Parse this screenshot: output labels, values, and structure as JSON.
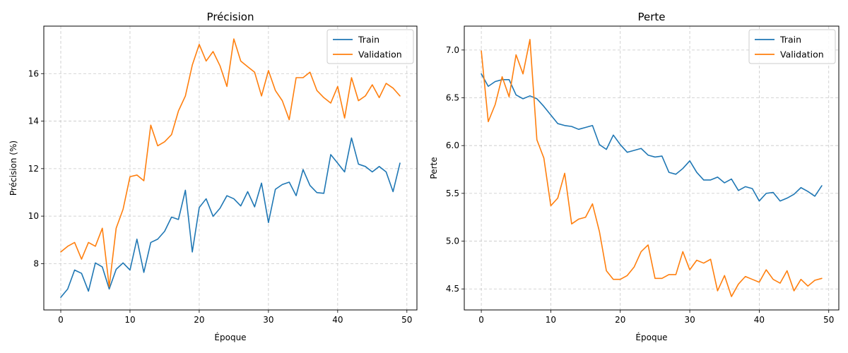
{
  "chart_data": [
    {
      "type": "line",
      "title": "Précision",
      "xlabel": "Époque",
      "ylabel": "Précision (%)",
      "xlim": [
        -2.45,
        51.45
      ],
      "ylim": [
        6.05,
        18.0
      ],
      "xticks": [
        0,
        10,
        20,
        30,
        40,
        50
      ],
      "yticks": [
        8,
        10,
        12,
        14,
        16
      ],
      "ytick_decimals": 0,
      "grid": true,
      "legend": "top-right",
      "x": [
        0,
        1,
        2,
        3,
        4,
        5,
        6,
        7,
        8,
        9,
        10,
        11,
        12,
        13,
        14,
        15,
        16,
        17,
        18,
        19,
        20,
        21,
        22,
        23,
        24,
        25,
        26,
        27,
        28,
        29,
        30,
        31,
        32,
        33,
        34,
        35,
        36,
        37,
        38,
        39,
        40,
        41,
        42,
        43,
        44,
        45,
        46,
        47,
        48,
        49
      ],
      "series": [
        {
          "name": "Train",
          "color": "#1f77b4",
          "values": [
            6.58,
            6.93,
            7.73,
            7.59,
            6.84,
            8.03,
            7.86,
            6.93,
            7.76,
            8.03,
            7.73,
            9.03,
            7.63,
            8.89,
            9.03,
            9.36,
            9.96,
            9.86,
            11.09,
            8.49,
            10.36,
            10.73,
            9.99,
            10.33,
            10.86,
            10.73,
            10.43,
            11.03,
            10.39,
            11.39,
            9.73,
            11.13,
            11.33,
            11.43,
            10.86,
            11.96,
            11.29,
            10.99,
            10.96,
            12.59,
            12.23,
            11.86,
            13.29,
            12.19,
            12.09,
            11.86,
            12.09,
            11.86,
            11.03,
            12.23
          ]
        },
        {
          "name": "Validation",
          "color": "#ff7f0e",
          "values": [
            8.49,
            8.73,
            8.89,
            8.19,
            8.89,
            8.73,
            9.49,
            7.03,
            9.49,
            10.29,
            11.66,
            11.73,
            11.49,
            13.83,
            12.96,
            13.13,
            13.43,
            14.43,
            15.06,
            16.36,
            17.23,
            16.53,
            16.93,
            16.33,
            15.46,
            17.46,
            16.53,
            16.29,
            16.06,
            15.06,
            16.13,
            15.29,
            14.86,
            14.06,
            15.83,
            15.83,
            16.06,
            15.29,
            14.99,
            14.76,
            15.46,
            14.13,
            15.83,
            14.86,
            15.06,
            15.53,
            14.99,
            15.59,
            15.39,
            15.06
          ]
        }
      ]
    },
    {
      "type": "line",
      "title": "Perte",
      "xlabel": "Époque",
      "ylabel": "Perte",
      "xlim": [
        -2.45,
        51.45
      ],
      "ylim": [
        4.28,
        7.25
      ],
      "xticks": [
        0,
        10,
        20,
        30,
        40,
        50
      ],
      "yticks": [
        4.5,
        5.0,
        5.5,
        6.0,
        6.5,
        7.0
      ],
      "ytick_decimals": 1,
      "grid": true,
      "legend": "top-right",
      "x": [
        0,
        1,
        2,
        3,
        4,
        5,
        6,
        7,
        8,
        9,
        10,
        11,
        12,
        13,
        14,
        15,
        16,
        17,
        18,
        19,
        20,
        21,
        22,
        23,
        24,
        25,
        26,
        27,
        28,
        29,
        30,
        31,
        32,
        33,
        34,
        35,
        36,
        37,
        38,
        39,
        40,
        41,
        42,
        43,
        44,
        45,
        46,
        47,
        48,
        49
      ],
      "series": [
        {
          "name": "Train",
          "color": "#1f77b4",
          "values": [
            6.75,
            6.62,
            6.67,
            6.69,
            6.69,
            6.53,
            6.49,
            6.52,
            6.49,
            6.41,
            6.32,
            6.23,
            6.21,
            6.2,
            6.17,
            6.19,
            6.21,
            6.01,
            5.96,
            6.11,
            6.01,
            5.93,
            5.95,
            5.97,
            5.9,
            5.88,
            5.89,
            5.72,
            5.7,
            5.76,
            5.84,
            5.72,
            5.64,
            5.64,
            5.67,
            5.61,
            5.65,
            5.53,
            5.57,
            5.55,
            5.42,
            5.5,
            5.51,
            5.42,
            5.45,
            5.49,
            5.56,
            5.52,
            5.47,
            5.58
          ]
        },
        {
          "name": "Validation",
          "color": "#ff7f0e",
          "values": [
            6.99,
            6.25,
            6.43,
            6.72,
            6.51,
            6.95,
            6.75,
            7.11,
            6.06,
            5.87,
            5.37,
            5.45,
            5.71,
            5.18,
            5.23,
            5.25,
            5.39,
            5.1,
            4.69,
            4.6,
            4.6,
            4.64,
            4.73,
            4.89,
            4.96,
            4.61,
            4.61,
            4.65,
            4.65,
            4.89,
            4.7,
            4.8,
            4.77,
            4.81,
            4.48,
            4.64,
            4.42,
            4.55,
            4.63,
            4.6,
            4.57,
            4.7,
            4.6,
            4.56,
            4.69,
            4.48,
            4.6,
            4.53,
            4.59,
            4.61
          ]
        }
      ]
    }
  ]
}
